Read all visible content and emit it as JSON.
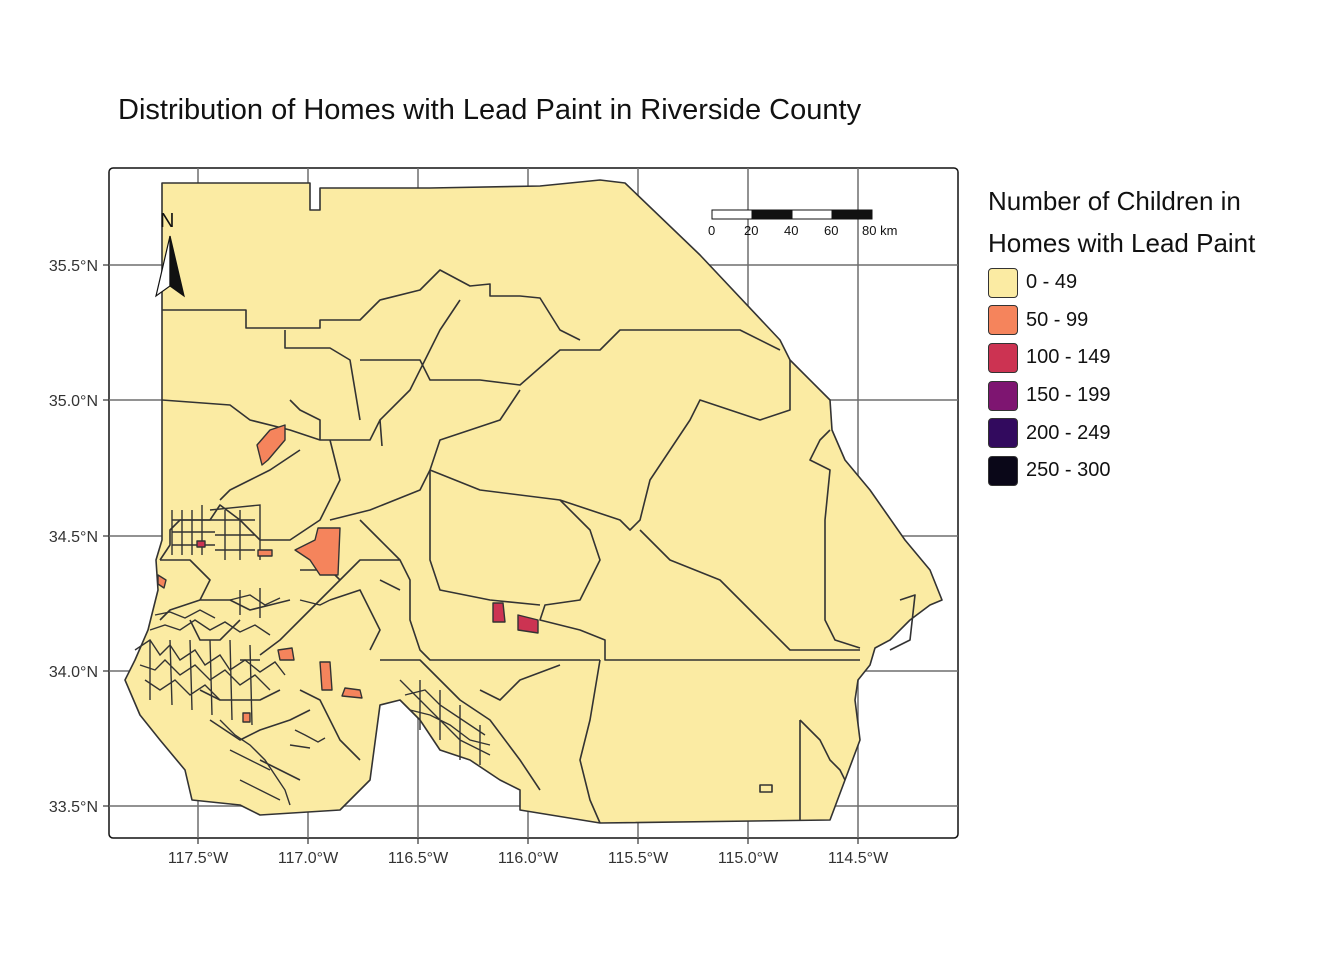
{
  "map": {
    "title": "Distribution of Homes with Lead Paint in Riverside County",
    "x_ticks": [
      "117.5°W",
      "117.0°W",
      "116.5°W",
      "116.0°W",
      "115.5°W",
      "115.0°W",
      "114.5°W"
    ],
    "y_ticks": [
      "35.5°N",
      "35.0°N",
      "34.5°N",
      "34.0°N",
      "33.5°N"
    ],
    "north_arrow": "N",
    "scale_bar": {
      "labels": [
        "0",
        "20",
        "40",
        "60",
        "80 km"
      ]
    },
    "legend": {
      "title_line1": "Number of Children in",
      "title_line2": "Homes with Lead Paint",
      "items": [
        {
          "label": "0 - 49",
          "color": "#FBEBA3"
        },
        {
          "label": "50 - 99",
          "color": "#F5845C"
        },
        {
          "label": "100 - 149",
          "color": "#CC3352"
        },
        {
          "label": "150 - 199",
          "color": "#7E1571"
        },
        {
          "label": "200 - 249",
          "color": "#320A5E"
        },
        {
          "label": "250 - 300",
          "color": "#0A0718"
        }
      ]
    },
    "colors": {
      "base_fill": "#FBEBA3",
      "border": "#333333",
      "grid": "#6E6E6E"
    }
  }
}
